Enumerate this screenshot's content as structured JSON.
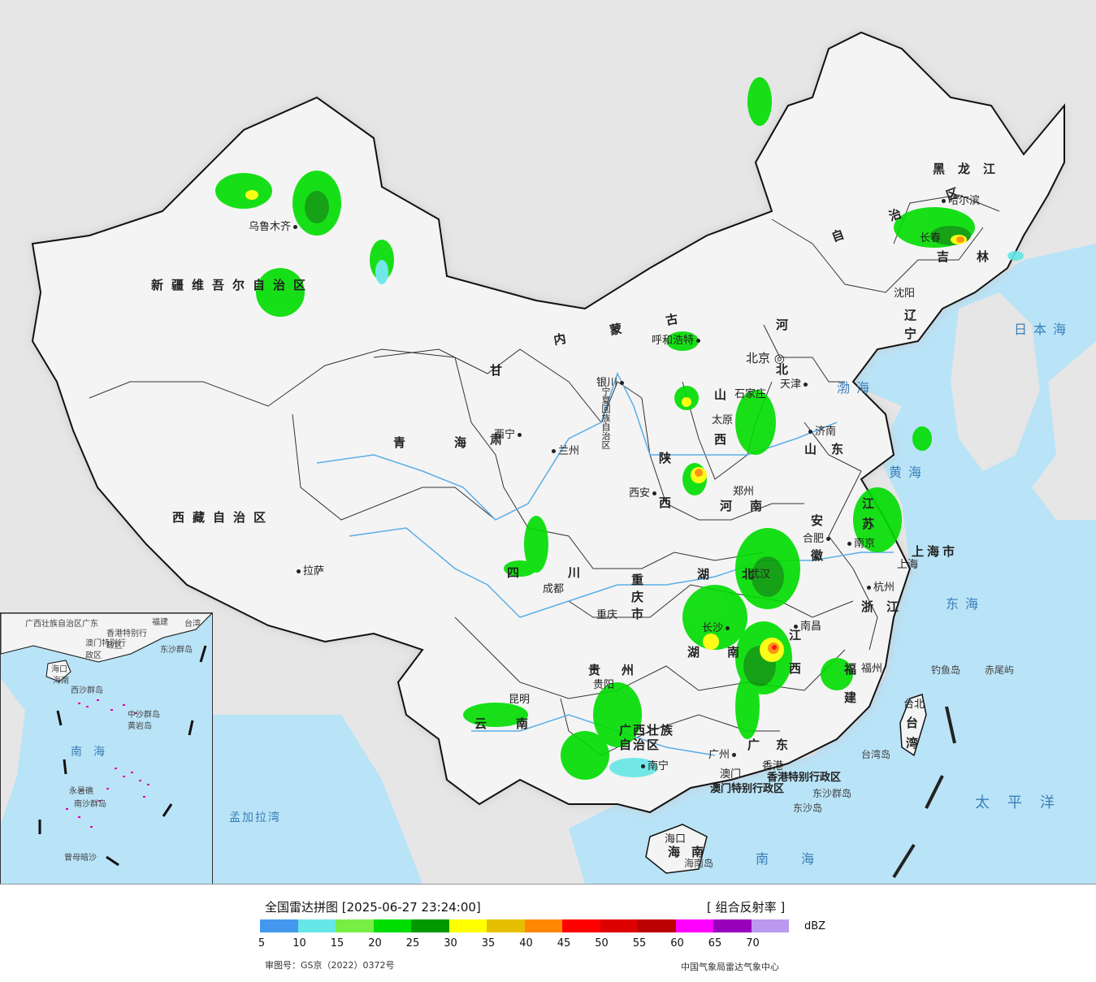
{
  "title": "全国雷达拼图 [2025-06-27 23:24:00]",
  "product": "[ 组合反射率 ]",
  "unit": "dBZ",
  "approval_number": "审图号：GS京（2022）0372号",
  "producer": "中国气象局雷达气象中心",
  "legend": {
    "colors": [
      "#4499ee",
      "#66e6e6",
      "#77ee44",
      "#00dd00",
      "#009900",
      "#ffff00",
      "#e6c000",
      "#ff8800",
      "#ff0000",
      "#dd0000",
      "#bb0000",
      "#ff00ff",
      "#9900bb",
      "#bb99ee"
    ],
    "ticks": [
      "5",
      "10",
      "15",
      "20",
      "25",
      "30",
      "35",
      "40",
      "45",
      "50",
      "55",
      "60",
      "65",
      "70"
    ]
  },
  "provinces": [
    {
      "name": "新疆维吾尔自治区"
    },
    {
      "name": "西藏自治区"
    },
    {
      "name": "青海"
    },
    {
      "name": "甘肃"
    },
    {
      "name": "内蒙古"
    },
    {
      "name": "黑龙江"
    },
    {
      "name": "吉林"
    },
    {
      "name": "辽宁"
    },
    {
      "name": "河北"
    },
    {
      "name": "山西"
    },
    {
      "name": "陕西"
    },
    {
      "name": "河南"
    },
    {
      "name": "山东"
    },
    {
      "name": "江苏"
    },
    {
      "name": "安徽"
    },
    {
      "name": "湖北"
    },
    {
      "name": "四川"
    },
    {
      "name": "重庆市"
    },
    {
      "name": "湖南"
    },
    {
      "name": "江西"
    },
    {
      "name": "浙江"
    },
    {
      "name": "福建"
    },
    {
      "name": "贵州"
    },
    {
      "name": "云南"
    },
    {
      "name": "广西壮族自治区"
    },
    {
      "name": "广东"
    },
    {
      "name": "海南"
    },
    {
      "name": "台湾"
    },
    {
      "name": "上海市"
    },
    {
      "name": "宁夏回族自治区"
    },
    {
      "name": "自治区"
    },
    {
      "name": "香港特别行政区"
    },
    {
      "name": "澳门特别行政区"
    }
  ],
  "cities": [
    {
      "name": "乌鲁木齐"
    },
    {
      "name": "拉萨"
    },
    {
      "name": "西宁"
    },
    {
      "name": "兰州"
    },
    {
      "name": "银川"
    },
    {
      "name": "呼和浩特"
    },
    {
      "name": "北京"
    },
    {
      "name": "天津"
    },
    {
      "name": "石家庄"
    },
    {
      "name": "太原"
    },
    {
      "name": "济南"
    },
    {
      "name": "西安"
    },
    {
      "name": "郑州"
    },
    {
      "name": "合肥"
    },
    {
      "name": "南京"
    },
    {
      "name": "上海"
    },
    {
      "name": "杭州"
    },
    {
      "name": "成都"
    },
    {
      "name": "重庆"
    },
    {
      "name": "武汉"
    },
    {
      "name": "长沙"
    },
    {
      "name": "南昌"
    },
    {
      "name": "福州"
    },
    {
      "name": "台北"
    },
    {
      "name": "贵阳"
    },
    {
      "name": "昆明"
    },
    {
      "name": "南宁"
    },
    {
      "name": "广州"
    },
    {
      "name": "澳门"
    },
    {
      "name": "香港"
    },
    {
      "name": "海口"
    },
    {
      "name": "哈尔滨"
    },
    {
      "name": "长春"
    },
    {
      "name": "沈阳"
    }
  ],
  "seas": [
    {
      "name": "日本海"
    },
    {
      "name": "渤海"
    },
    {
      "name": "黄海"
    },
    {
      "name": "东海"
    },
    {
      "name": "太平洋"
    },
    {
      "name": "南海"
    },
    {
      "name": "孟加拉湾"
    }
  ],
  "islands": [
    {
      "name": "钓鱼岛"
    },
    {
      "name": "赤尾屿"
    },
    {
      "name": "台湾岛"
    },
    {
      "name": "东沙群岛"
    },
    {
      "name": "东沙岛"
    },
    {
      "name": "海南岛"
    }
  ],
  "inset": {
    "sea": "南海",
    "labels": [
      {
        "name": "广西壮族自治区"
      },
      {
        "name": "广东"
      },
      {
        "name": "福建"
      },
      {
        "name": "台湾"
      },
      {
        "name": "香港特别行政区"
      },
      {
        "name": "澳门特别行政区"
      },
      {
        "name": "东沙群岛"
      },
      {
        "name": "海口"
      },
      {
        "name": "海南"
      },
      {
        "name": "西沙群岛"
      },
      {
        "name": "中沙群岛"
      },
      {
        "name": "黄岩岛"
      },
      {
        "name": "南沙群岛"
      },
      {
        "name": "永暑礁"
      },
      {
        "name": "曾母暗沙"
      }
    ]
  }
}
